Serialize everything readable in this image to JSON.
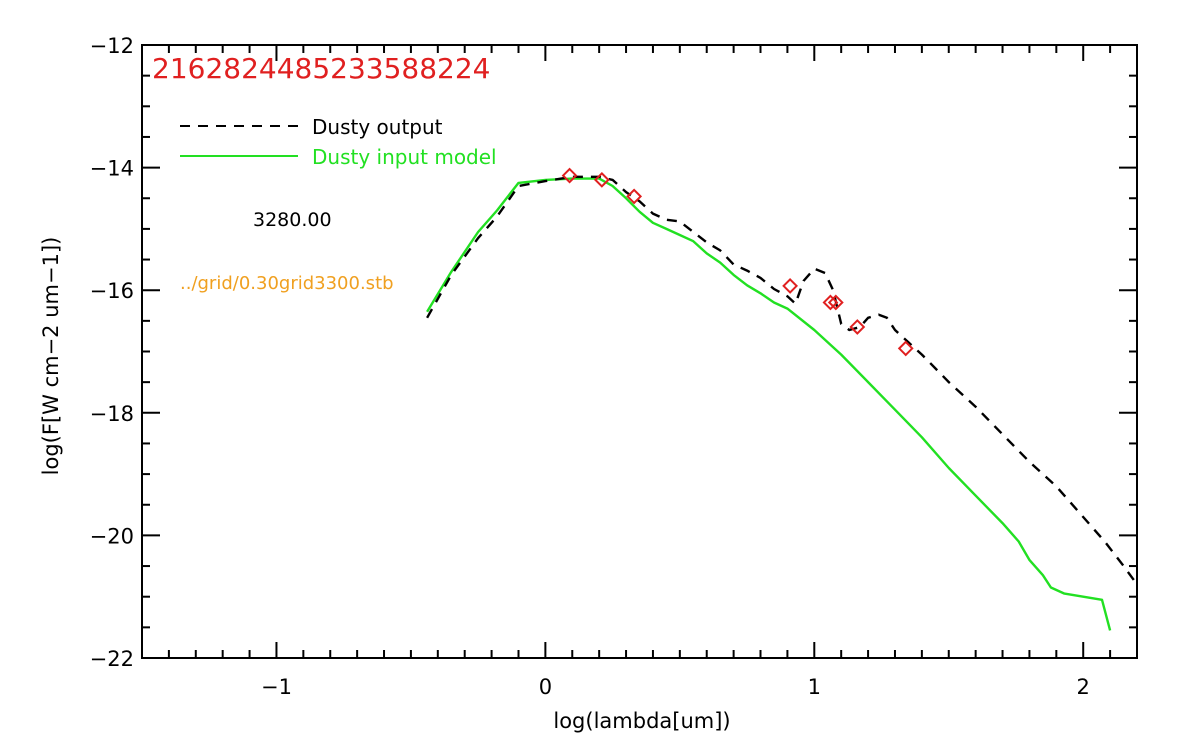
{
  "chart_data": {
    "type": "line",
    "title": "21628244852335882​24",
    "xlabel": "log(lambda[um])",
    "ylabel": "log(F[W cm−2 um−1])",
    "xlim": [
      -1.5,
      2.2
    ],
    "ylim": [
      -22,
      -12
    ],
    "x_ticks": [
      -1,
      0,
      1,
      2
    ],
    "x_tick_labels": [
      "−1",
      "0",
      "1",
      "2"
    ],
    "y_ticks": [
      -22,
      -20,
      -18,
      -16,
      -14,
      -12
    ],
    "y_tick_labels": [
      "−22",
      "−20",
      "−18",
      "−16",
      "−14",
      "−12"
    ],
    "grid": false,
    "legend_position": "top-left",
    "annotations": {
      "temperature": "3280.00",
      "grid_file": "../grid/0.30grid3300.stb"
    },
    "colors": {
      "axes": "#000000",
      "title": "#e02020",
      "output_line": "#000000",
      "input_line": "#22e022",
      "observed": "#e02020",
      "grid_file": "#f0a020"
    },
    "series": [
      {
        "name": "Dusty output",
        "style": "dashed",
        "color": "#000000",
        "x": [
          -0.44,
          -0.35,
          -0.25,
          -0.18,
          -0.1,
          0.0,
          0.1,
          0.2,
          0.25,
          0.3,
          0.35,
          0.4,
          0.45,
          0.5,
          0.55,
          0.6,
          0.65,
          0.7,
          0.75,
          0.8,
          0.85,
          0.9,
          0.93,
          0.96,
          1.0,
          1.04,
          1.07,
          1.1,
          1.13,
          1.17,
          1.2,
          1.24,
          1.27,
          1.3,
          1.35,
          1.4,
          1.5,
          1.6,
          1.7,
          1.8,
          1.9,
          2.0,
          2.08,
          2.15,
          2.2
        ],
        "values": [
          -16.45,
          -15.75,
          -15.15,
          -14.8,
          -14.3,
          -14.22,
          -14.15,
          -14.15,
          -14.2,
          -14.4,
          -14.55,
          -14.75,
          -14.85,
          -14.88,
          -15.05,
          -15.22,
          -15.35,
          -15.58,
          -15.68,
          -15.8,
          -15.98,
          -16.1,
          -16.22,
          -15.85,
          -15.65,
          -15.72,
          -16.0,
          -16.55,
          -16.65,
          -16.6,
          -16.45,
          -16.4,
          -16.45,
          -16.65,
          -16.85,
          -17.05,
          -17.5,
          -17.9,
          -18.35,
          -18.8,
          -19.2,
          -19.7,
          -20.1,
          -20.5,
          -20.8
        ]
      },
      {
        "name": "Dusty input model",
        "style": "solid",
        "color": "#22e022",
        "x": [
          -0.44,
          -0.35,
          -0.25,
          -0.18,
          -0.1,
          0.0,
          0.1,
          0.2,
          0.25,
          0.3,
          0.35,
          0.4,
          0.45,
          0.5,
          0.55,
          0.6,
          0.65,
          0.7,
          0.75,
          0.8,
          0.85,
          0.9,
          1.0,
          1.1,
          1.2,
          1.3,
          1.4,
          1.5,
          1.6,
          1.7,
          1.76,
          1.8,
          1.85,
          1.88,
          1.93,
          2.0,
          2.07,
          2.1
        ],
        "values": [
          -16.35,
          -15.7,
          -15.05,
          -14.7,
          -14.25,
          -14.2,
          -14.18,
          -14.18,
          -14.3,
          -14.5,
          -14.72,
          -14.9,
          -15.0,
          -15.1,
          -15.2,
          -15.4,
          -15.55,
          -15.75,
          -15.92,
          -16.05,
          -16.2,
          -16.3,
          -16.65,
          -17.05,
          -17.5,
          -17.95,
          -18.4,
          -18.9,
          -19.35,
          -19.8,
          -20.1,
          -20.4,
          -20.65,
          -20.85,
          -20.95,
          -21.0,
          -21.05,
          -21.55
        ]
      },
      {
        "name": "",
        "style": "markers",
        "marker": "diamond",
        "color": "#e02020",
        "x": [
          0.09,
          0.21,
          0.33,
          0.91,
          1.06,
          1.08,
          1.16,
          1.34
        ],
        "values": [
          -14.13,
          -14.2,
          -14.47,
          -15.93,
          -16.2,
          -16.2,
          -16.6,
          -16.95
        ]
      }
    ]
  }
}
